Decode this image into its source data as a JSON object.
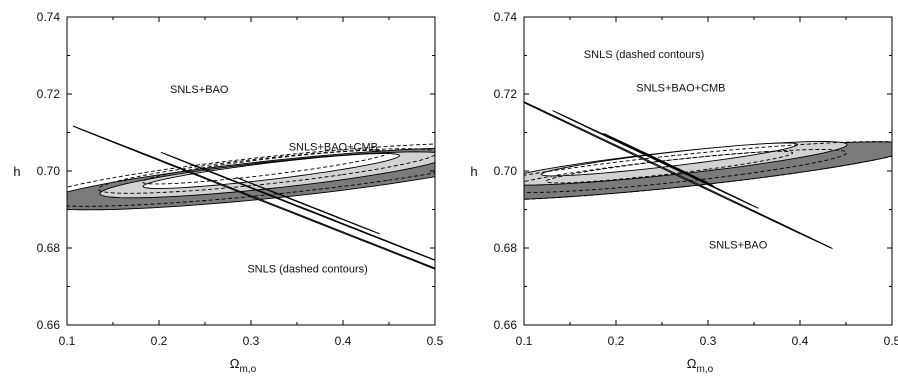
{
  "chart_data": [
    {
      "type": "contour",
      "xlabel": "Ω",
      "xlabel_sub": "m,o",
      "ylabel": "h",
      "xlim": [
        0.1,
        0.5
      ],
      "ylim": [
        0.66,
        0.74
      ],
      "x_ticks": [
        0.1,
        0.2,
        0.3,
        0.4,
        0.5
      ],
      "x_tick_labels": [
        "0.1",
        "0.2",
        "0.3",
        "0.4",
        "0.5"
      ],
      "y_ticks": [
        0.66,
        0.68,
        0.7,
        0.72,
        0.74
      ],
      "y_tick_labels": [
        "0.66",
        "0.68",
        "0.70",
        "0.72",
        "0.74"
      ],
      "grid": false,
      "regions": [
        {
          "set": "SNLS+BAO",
          "level": 3,
          "fill": "#7b7b7b",
          "center": [
            0.33,
            0.698
          ],
          "semi_axes": [
            0.138,
            0.0092
          ],
          "angle": -30
        },
        {
          "set": "SNLS+BAO",
          "level": 2,
          "fill": "#d2d2d2",
          "center": [
            0.325,
            0.699
          ],
          "semi_axes": [
            0.096,
            0.0068
          ],
          "angle": -30
        },
        {
          "set": "SNLS+BAO",
          "level": 1,
          "fill": "#ffffff",
          "center": [
            0.322,
            0.7
          ],
          "semi_axes": [
            0.058,
            0.0052
          ],
          "angle": -30
        },
        {
          "set": "SNLS+BAO+CMB",
          "level": 3,
          "fill": "#a8a8a8",
          "center": [
            0.358,
            0.688
          ],
          "semi_axes": [
            0.0016,
            0.0242
          ],
          "angle": 12
        },
        {
          "set": "SNLS+BAO+CMB",
          "level": 2,
          "fill": "#d2d2d2",
          "center": [
            0.36,
            0.69
          ],
          "semi_axes": [
            0.0012,
            0.0152
          ],
          "angle": 12
        },
        {
          "set": "SNLS+BAO+CMB",
          "level": 1,
          "fill": "#ffffff",
          "center": [
            0.362,
            0.691
          ],
          "semi_axes": [
            0.0008,
            0.0075
          ],
          "angle": 12
        }
      ],
      "dashed_contours": [
        {
          "set": "SNLS",
          "center": [
            0.328,
            0.699
          ],
          "semi_axes": [
            0.14,
            0.0093
          ],
          "angle": -30
        },
        {
          "set": "SNLS",
          "center": [
            0.318,
            0.7
          ],
          "semi_axes": [
            0.094,
            0.0066
          ],
          "angle": -30
        },
        {
          "set": "SNLS",
          "center": [
            0.316,
            0.701
          ],
          "semi_axes": [
            0.056,
            0.005
          ],
          "angle": -30
        }
      ],
      "annotations": [
        {
          "text": "SNLS+BAO",
          "x": 0.212,
          "y": 0.7203
        },
        {
          "text": "SNLS+BAO+CMB",
          "x": 0.341,
          "y": 0.7053
        },
        {
          "text": "SNLS (dashed contours)",
          "x": 0.296,
          "y": 0.6736
        }
      ]
    },
    {
      "type": "contour",
      "xlabel": "Ω",
      "xlabel_sub": "m,o",
      "ylabel": "h",
      "xlim": [
        0.1,
        0.5
      ],
      "ylim": [
        0.66,
        0.74
      ],
      "x_ticks": [
        0.1,
        0.2,
        0.3,
        0.4,
        0.5
      ],
      "x_tick_labels": [
        "0.1",
        "0.2",
        "0.3",
        "0.4",
        "0.5"
      ],
      "y_ticks": [
        0.66,
        0.68,
        0.7,
        0.72,
        0.74
      ],
      "y_tick_labels": [
        "0.66",
        "0.68",
        "0.70",
        "0.72",
        "0.74"
      ],
      "grid": false,
      "regions": [
        {
          "set": "SNLS+BAO",
          "level": 3,
          "fill": "#7b7b7b",
          "center": [
            0.272,
            0.7
          ],
          "semi_axes": [
            0.119,
            0.0088
          ],
          "angle": -32
        },
        {
          "set": "SNLS+BAO",
          "level": 2,
          "fill": "#d2d2d2",
          "center": [
            0.262,
            0.702
          ],
          "semi_axes": [
            0.085,
            0.0066
          ],
          "angle": -32
        },
        {
          "set": "SNLS+BAO",
          "level": 1,
          "fill": "#ffffff",
          "center": [
            0.258,
            0.703
          ],
          "semi_axes": [
            0.05,
            0.005
          ],
          "angle": -32
        },
        {
          "set": "SNLS+BAO+CMB",
          "level": 3,
          "fill": "#a8a8a8",
          "center": [
            0.24,
            0.702
          ],
          "semi_axes": [
            0.0015,
            0.0225
          ],
          "angle": 10
        },
        {
          "set": "SNLS+BAO+CMB",
          "level": 2,
          "fill": "#d2d2d2",
          "center": [
            0.243,
            0.703
          ],
          "semi_axes": [
            0.0011,
            0.0128
          ],
          "angle": 10
        },
        {
          "set": "SNLS+BAO+CMB",
          "level": 1,
          "fill": "#ffffff",
          "center": [
            0.246,
            0.703
          ],
          "semi_axes": [
            0.0007,
            0.0068
          ],
          "angle": 10
        }
      ],
      "dashed_contours": [
        {
          "set": "SNLS",
          "center": [
            0.27,
            0.7
          ],
          "semi_axes": [
            0.121,
            0.0089
          ],
          "angle": -32
        },
        {
          "set": "SNLS",
          "center": [
            0.264,
            0.7
          ],
          "semi_axes": [
            0.085,
            0.0065
          ],
          "angle": -32
        },
        {
          "set": "SNLS",
          "center": [
            0.258,
            0.701
          ],
          "semi_axes": [
            0.05,
            0.0048
          ],
          "angle": -32
        }
      ],
      "annotations": [
        {
          "text": "SNLS (dashed contours)",
          "x": 0.165,
          "y": 0.7293
        },
        {
          "text": "SNLS+BAO+CMB",
          "x": 0.222,
          "y": 0.7206
        },
        {
          "text": "SNLS+BAO",
          "x": 0.301,
          "y": 0.6799
        }
      ]
    }
  ]
}
